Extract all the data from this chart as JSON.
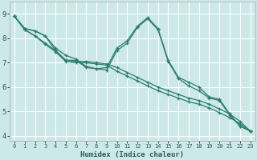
{
  "title": "",
  "xlabel": "Humidex (Indice chaleur)",
  "line_color": "#2d7d6f",
  "bg_color": "#cce8e8",
  "grid_color": "#ffffff",
  "xlim": [
    -0.5,
    23.5
  ],
  "ylim": [
    3.8,
    9.5
  ],
  "yticks": [
    4,
    5,
    6,
    7,
    8,
    9
  ],
  "xticks": [
    0,
    1,
    2,
    3,
    4,
    5,
    6,
    7,
    8,
    9,
    10,
    11,
    12,
    13,
    14,
    15,
    16,
    17,
    18,
    19,
    20,
    21,
    22,
    23
  ],
  "lines": [
    {
      "x": [
        0,
        1,
        2,
        3,
        4,
        5,
        6,
        7,
        8,
        9,
        10,
        11,
        12,
        13,
        14,
        15,
        16,
        17,
        18,
        19,
        20,
        21,
        22,
        23
      ],
      "y": [
        8.9,
        8.4,
        8.3,
        8.1,
        7.6,
        7.3,
        7.15,
        6.85,
        6.75,
        6.8,
        7.6,
        7.9,
        8.5,
        8.85,
        8.4,
        7.1,
        6.4,
        6.2,
        6.0,
        5.6,
        5.5,
        4.9,
        4.4,
        4.2
      ]
    },
    {
      "x": [
        0,
        1,
        2,
        3,
        4,
        5,
        6,
        7,
        8,
        9,
        10,
        11,
        12,
        13,
        14,
        15,
        16,
        17,
        18,
        19,
        20,
        21,
        22,
        23
      ],
      "y": [
        8.9,
        8.4,
        8.3,
        8.1,
        7.5,
        7.1,
        7.1,
        6.8,
        6.75,
        6.7,
        7.5,
        7.8,
        8.45,
        8.8,
        8.35,
        7.05,
        6.35,
        6.05,
        5.85,
        5.55,
        5.45,
        4.85,
        4.4,
        4.2
      ]
    },
    {
      "x": [
        0,
        1,
        2,
        3,
        4,
        5,
        6,
        7,
        8,
        9,
        10,
        11,
        12,
        13,
        14,
        15,
        16,
        17,
        18,
        19,
        20,
        21,
        22,
        23
      ],
      "y": [
        8.9,
        8.35,
        8.1,
        7.8,
        7.5,
        7.1,
        7.05,
        7.05,
        7.0,
        6.95,
        6.8,
        6.6,
        6.4,
        6.2,
        6.0,
        5.85,
        5.7,
        5.55,
        5.45,
        5.3,
        5.1,
        4.9,
        4.6,
        4.2
      ]
    },
    {
      "x": [
        0,
        1,
        2,
        3,
        4,
        5,
        6,
        7,
        8,
        9,
        10,
        11,
        12,
        13,
        14,
        15,
        16,
        17,
        18,
        19,
        20,
        21,
        22,
        23
      ],
      "y": [
        8.9,
        8.35,
        8.1,
        7.75,
        7.45,
        7.05,
        7.0,
        7.0,
        6.95,
        6.9,
        6.65,
        6.45,
        6.25,
        6.05,
        5.85,
        5.7,
        5.55,
        5.4,
        5.3,
        5.15,
        4.95,
        4.75,
        4.5,
        4.2
      ]
    }
  ]
}
